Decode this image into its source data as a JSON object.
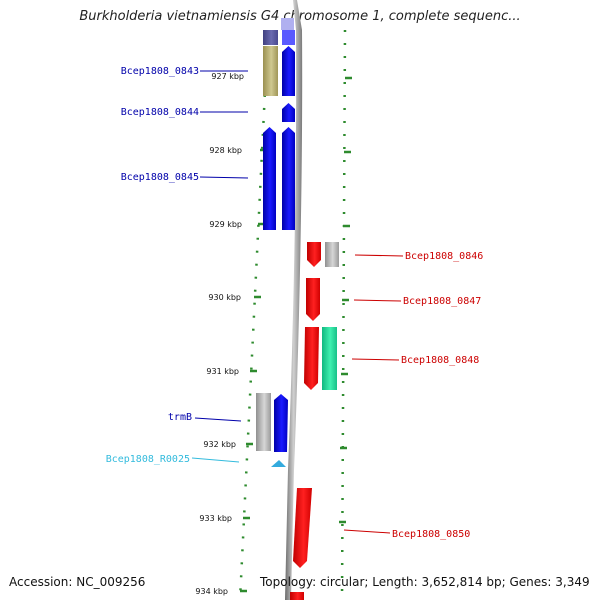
{
  "header": {
    "title": "Burkholderia vietnamiensis G4 chromosome 1, complete sequenc..."
  },
  "footer": {
    "accession": "Accession: NC_009256",
    "topology": "Topology: circular; Length: 3,652,814 bp; Genes: 3,349"
  },
  "ruler": {
    "ticks": [
      "927 kbp",
      "928 kbp",
      "929 kbp",
      "930 kbp",
      "931 kbp",
      "932 kbp",
      "933 kbp",
      "934 kbp"
    ]
  },
  "colors": {
    "forward_cds": "#0000ee",
    "reverse_cds": "#ee0000",
    "other_forward": "#b8b070",
    "other_reverse": "#20e0a0",
    "grey": "#b4b4b4",
    "rna": "#33aadd",
    "ruler_green": "#2e8b2e"
  },
  "genes": [
    {
      "label": "Bcep1808_0843",
      "strand": "forward"
    },
    {
      "label": "Bcep1808_0844",
      "strand": "forward"
    },
    {
      "label": "Bcep1808_0845",
      "strand": "forward"
    },
    {
      "label": "Bcep1808_0846",
      "strand": "reverse"
    },
    {
      "label": "Bcep1808_0847",
      "strand": "reverse"
    },
    {
      "label": "Bcep1808_0848",
      "strand": "reverse"
    },
    {
      "label": "trmB",
      "strand": "forward"
    },
    {
      "label": "Bcep1808_R0025",
      "strand": "rna"
    },
    {
      "label": "Bcep1808_0850",
      "strand": "reverse"
    }
  ]
}
